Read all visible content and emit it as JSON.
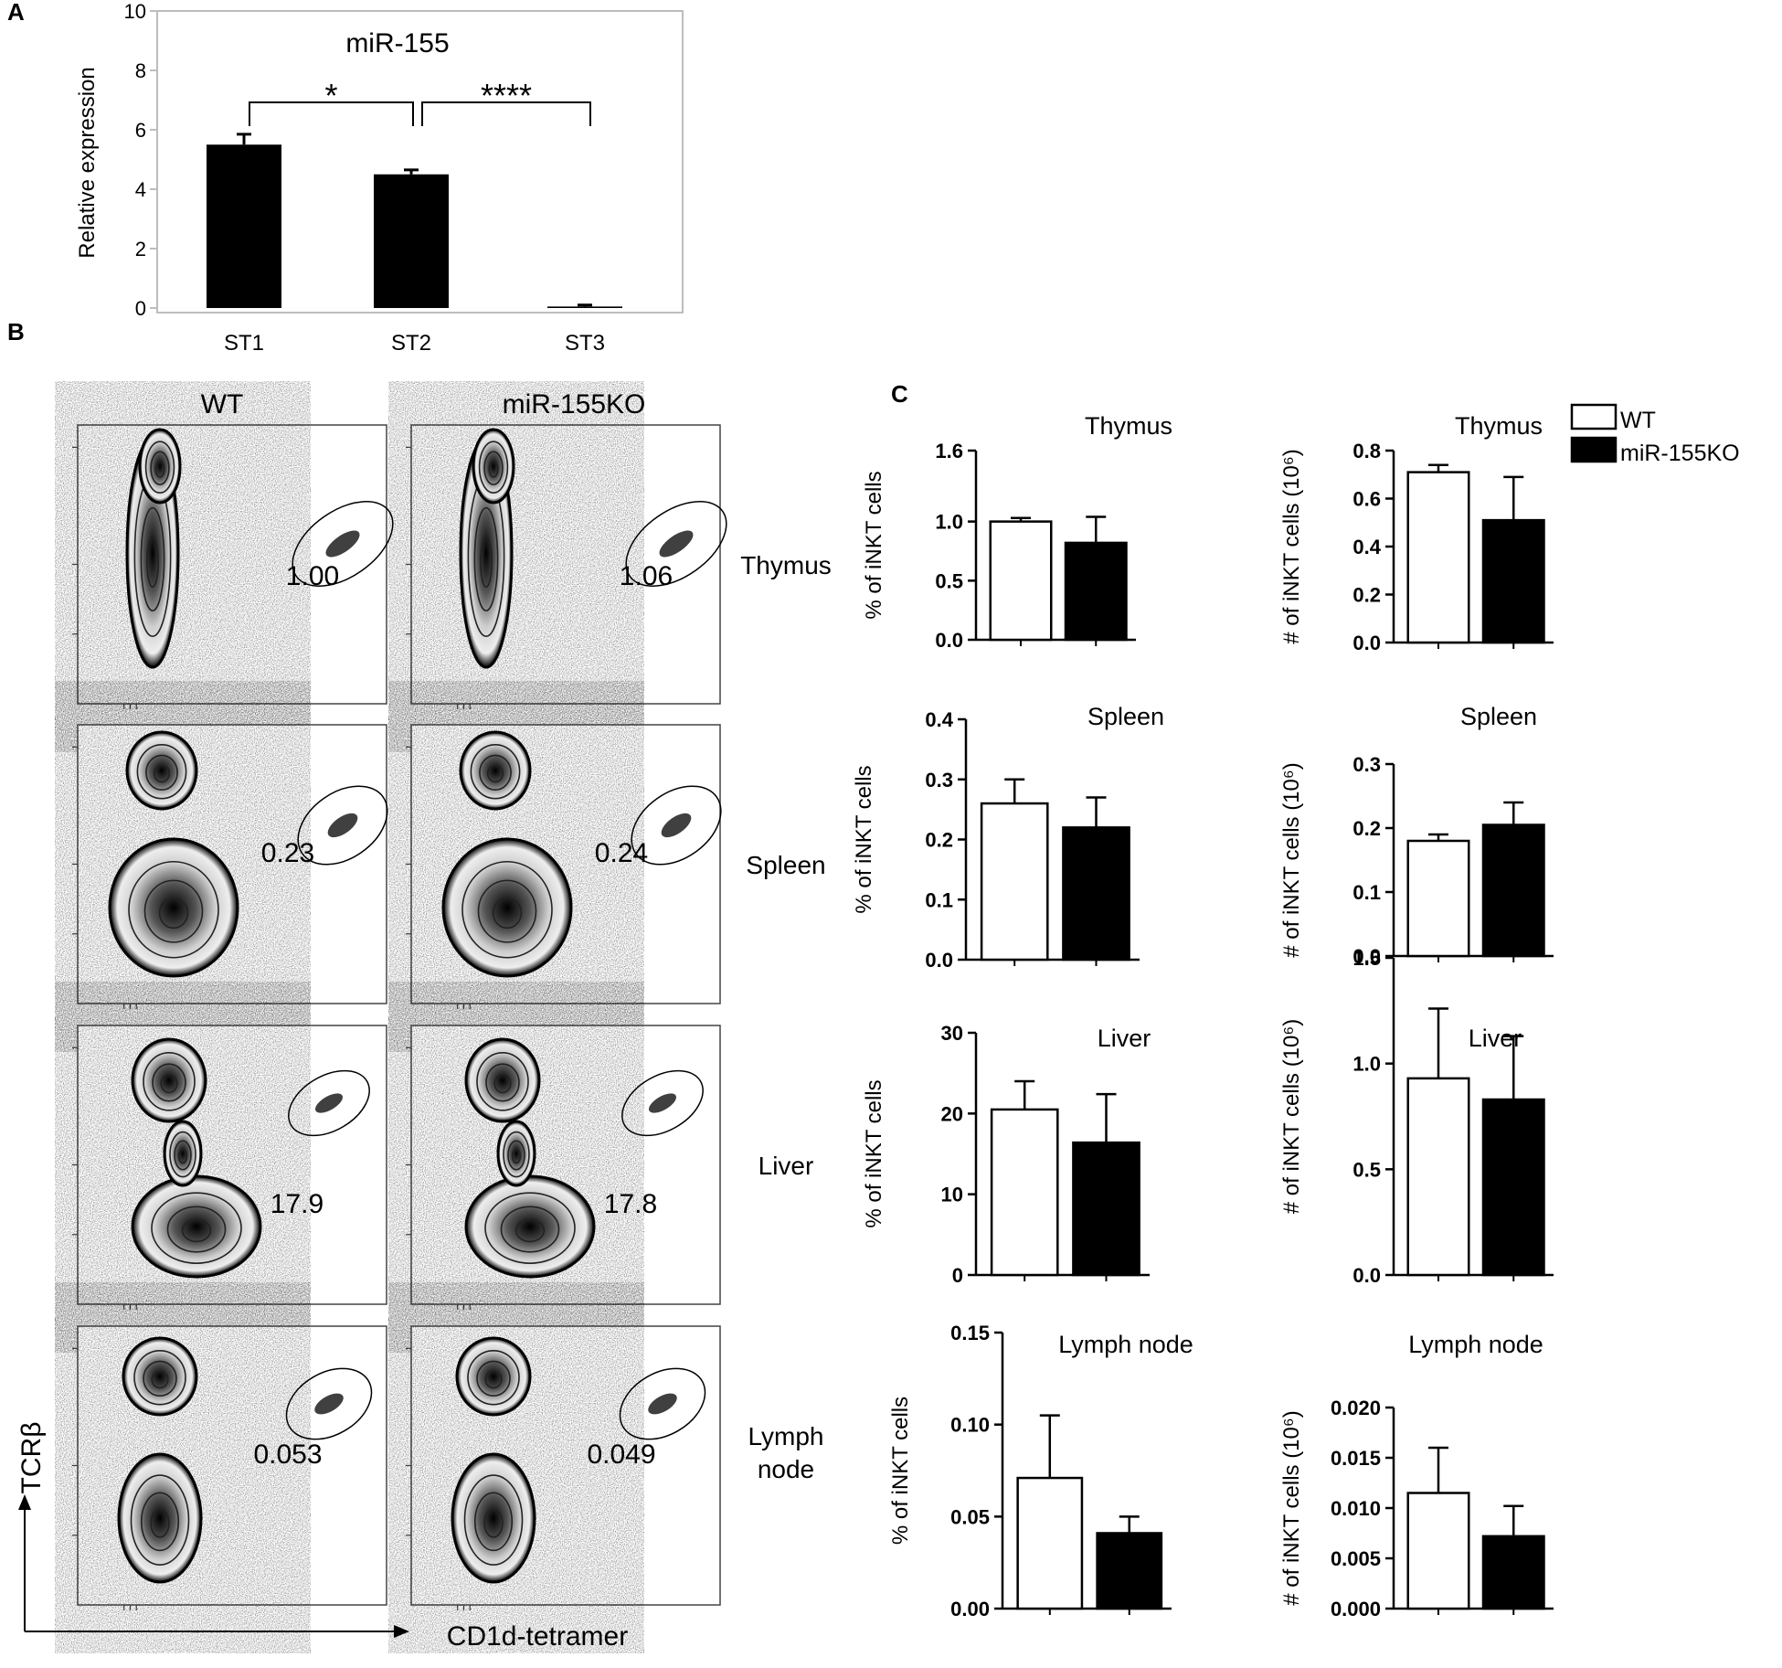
{
  "figure": {
    "panel_labels": [
      "A",
      "B",
      "C"
    ]
  },
  "chart_data": [
    {
      "id": "A",
      "type": "bar",
      "title": "miR-155",
      "ylabel": "Relative expression",
      "categories": [
        "ST1",
        "ST2",
        "ST3"
      ],
      "values": [
        5.5,
        4.5,
        0.05
      ],
      "errors": [
        0.35,
        0.15,
        0.05
      ],
      "ylim": [
        0,
        10
      ],
      "yticks": [
        "0",
        "2",
        "4",
        "6",
        "8",
        "10"
      ],
      "significance": [
        {
          "from": "ST1",
          "to": "ST2",
          "label": "*"
        },
        {
          "from": "ST2",
          "to": "ST3",
          "label": "****"
        }
      ],
      "bar_color": "#000000"
    },
    {
      "id": "B",
      "type": "flow-cytometry",
      "columns": [
        "WT",
        "miR-155KO"
      ],
      "rows": [
        {
          "name": "Thymus",
          "values": [
            "1.00",
            "1.06"
          ]
        },
        {
          "name": "Spleen",
          "values": [
            "0.23",
            "0.24"
          ]
        },
        {
          "name": "Liver",
          "values": [
            "17.9",
            "17.8"
          ]
        },
        {
          "name": "Lymph\nnode",
          "values": [
            "0.053",
            "0.049"
          ]
        }
      ],
      "ylabel": "TCRβ",
      "xlabel": "CD1d-tetramer"
    },
    {
      "id": "C",
      "type": "bar",
      "legend": {
        "position": "top-right",
        "entries": [
          {
            "name": "WT",
            "color": "#ffffff"
          },
          {
            "name": "miR-155KO",
            "color": "#000000"
          }
        ]
      },
      "panels": [
        {
          "title": "Thymus",
          "ylabel": "% of iNKT cells",
          "ylim": [
            0,
            1.6
          ],
          "yticks": [
            "0.0",
            "0.5",
            "1.0",
            "1.6"
          ],
          "series": [
            {
              "name": "WT",
              "value": 1.0,
              "error": 0.03
            },
            {
              "name": "miR-155KO",
              "value": 0.82,
              "error": 0.22
            }
          ]
        },
        {
          "title": "Thymus",
          "ylabel": "# of iNKT cells (10⁶)",
          "ylim": [
            0,
            0.8
          ],
          "yticks": [
            "0.0",
            "0.2",
            "0.4",
            "0.6",
            "0.8"
          ],
          "series": [
            {
              "name": "WT",
              "value": 0.71,
              "error": 0.03
            },
            {
              "name": "miR-155KO",
              "value": 0.51,
              "error": 0.18
            }
          ]
        },
        {
          "title": "Spleen",
          "ylabel": "% of iNKT cells",
          "ylim": [
            0,
            0.4
          ],
          "yticks": [
            "0.0",
            "0.1",
            "0.2",
            "0.3",
            "0.4"
          ],
          "series": [
            {
              "name": "WT",
              "value": 0.26,
              "error": 0.04
            },
            {
              "name": "miR-155KO",
              "value": 0.22,
              "error": 0.05
            }
          ]
        },
        {
          "title": "Spleen",
          "ylabel": "# of iNKT cells (10⁶)",
          "ylim": [
            0,
            0.3
          ],
          "yticks": [
            "0.0",
            "0.1",
            "0.2",
            "0.3"
          ],
          "series": [
            {
              "name": "WT",
              "value": 0.18,
              "error": 0.01
            },
            {
              "name": "miR-155KO",
              "value": 0.205,
              "error": 0.035
            }
          ]
        },
        {
          "title": "Liver",
          "ylabel": "% of iNKT cells",
          "ylim": [
            0,
            30
          ],
          "yticks": [
            "0",
            "10",
            "20",
            "30"
          ],
          "series": [
            {
              "name": "WT",
              "value": 20.5,
              "error": 3.5
            },
            {
              "name": "miR-155KO",
              "value": 16.4,
              "error": 6.0
            }
          ]
        },
        {
          "title": "Liver",
          "ylabel": "# of iNKT cells (10⁶)",
          "ylim": [
            0,
            1.5
          ],
          "yticks": [
            "0.0",
            "0.5",
            "1.0",
            "1.5"
          ],
          "series": [
            {
              "name": "WT",
              "value": 0.93,
              "error": 0.33
            },
            {
              "name": "miR-155KO",
              "value": 0.83,
              "error": 0.3
            }
          ]
        },
        {
          "title": "Lymph node",
          "ylabel": "% of iNKT cells",
          "ylim": [
            0,
            0.15
          ],
          "yticks": [
            "0.00",
            "0.05",
            "0.10",
            "0.15"
          ],
          "series": [
            {
              "name": "WT",
              "value": 0.071,
              "error": 0.034
            },
            {
              "name": "miR-155KO",
              "value": 0.041,
              "error": 0.009
            }
          ]
        },
        {
          "title": "Lymph node",
          "ylabel": "# of iNKT cells (10⁶)",
          "ylim": [
            0,
            0.02
          ],
          "yticks": [
            "0.000",
            "0.005",
            "0.010",
            "0.015",
            "0.020"
          ],
          "series": [
            {
              "name": "WT",
              "value": 0.0115,
              "error": 0.0045
            },
            {
              "name": "miR-155KO",
              "value": 0.0072,
              "error": 0.003
            }
          ]
        }
      ]
    }
  ]
}
